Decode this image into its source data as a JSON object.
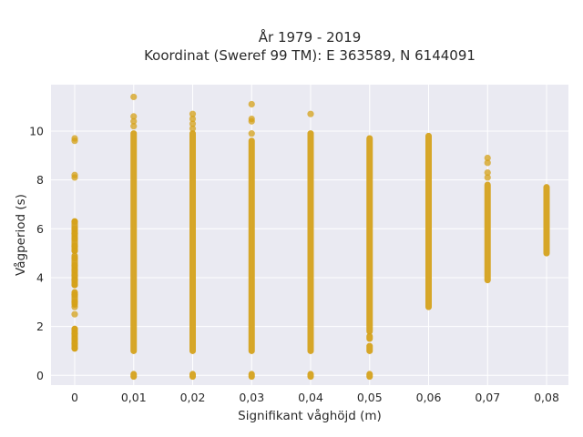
{
  "chart_data": {
    "type": "scatter",
    "title_line1": "År 1979 - 2019",
    "title_line2": "Koordinat (Sweref 99 TM): E 363589, N 6144091",
    "xlabel": "Signifikant våghöjd (m)",
    "ylabel": "Vågperiod (s)",
    "x_categories": [
      "0",
      "0,01",
      "0,02",
      "0,03",
      "0,04",
      "0,05",
      "0,06",
      "0,07",
      "0,08"
    ],
    "y_ticks": [
      "0",
      "2",
      "4",
      "6",
      "8",
      "10"
    ],
    "ylim": [
      -0.4,
      11.9
    ],
    "grid": true,
    "marker_color": "#d4a017",
    "background_color": "#eaeaf2",
    "series": [
      {
        "x": "0",
        "bands": [
          [
            1.1,
            1.9
          ],
          [
            2.9,
            3.4
          ],
          [
            3.7,
            4.9
          ],
          [
            5.1,
            6.3
          ]
        ],
        "points": [
          1.1,
          1.3,
          1.5,
          1.7,
          1.9,
          2.5,
          2.8,
          3.0,
          3.3,
          3.7,
          3.9,
          4.1,
          4.3,
          4.5,
          4.8,
          5.1,
          5.3,
          5.6,
          5.8,
          6.0,
          6.3,
          8.1,
          8.2,
          9.6,
          9.7
        ]
      },
      {
        "x": "0,01",
        "bands": [
          [
            -0.05,
            0.05
          ],
          [
            1.0,
            9.9
          ]
        ],
        "points": [
          10.2,
          10.4,
          10.6,
          11.4
        ]
      },
      {
        "x": "0,02",
        "bands": [
          [
            -0.05,
            0.05
          ],
          [
            1.0,
            9.9
          ]
        ],
        "points": [
          10.1,
          10.3,
          10.5,
          10.7
        ]
      },
      {
        "x": "0,03",
        "bands": [
          [
            -0.05,
            0.05
          ],
          [
            1.0,
            9.6
          ]
        ],
        "points": [
          9.9,
          10.4,
          10.5,
          11.1
        ]
      },
      {
        "x": "0,04",
        "bands": [
          [
            -0.05,
            0.05
          ],
          [
            1.0,
            9.9
          ]
        ],
        "points": [
          10.7
        ]
      },
      {
        "x": "0,05",
        "bands": [
          [
            -0.05,
            0.05
          ],
          [
            1.0,
            1.2
          ],
          [
            1.5,
            1.6
          ],
          [
            1.8,
            9.7
          ]
        ],
        "points": []
      },
      {
        "x": "0,06",
        "bands": [
          [
            2.8,
            9.8
          ]
        ],
        "points": []
      },
      {
        "x": "0,07",
        "bands": [
          [
            3.9,
            7.8
          ]
        ],
        "points": [
          8.1,
          8.3,
          8.7,
          8.9
        ]
      },
      {
        "x": "0,08",
        "bands": [
          [
            5.0,
            7.7
          ]
        ],
        "points": []
      }
    ]
  }
}
